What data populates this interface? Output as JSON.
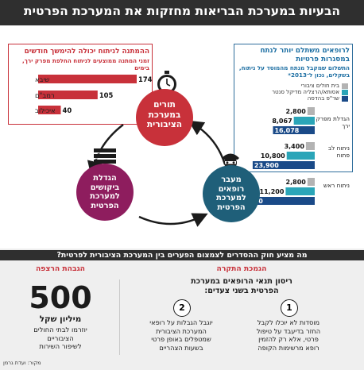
{
  "title": "הבעיות במערכת הבריאות מחזקות את המערכת הפרטית",
  "circles": {
    "public_queues": [
      "תורים",
      "במערכת",
      "הציבורית"
    ],
    "private_demand": [
      "הגדלת",
      "ביקושים",
      "למערכת",
      "הפרטית"
    ],
    "doctors_move": [
      "מעבר",
      "רופאים",
      "למערכת",
      "הפרטית"
    ]
  },
  "colors": {
    "red": "#c8313a",
    "purple": "#8e1d5e",
    "teal": "#1f5f79",
    "gray_bar": "#b3b3b3",
    "teal_bar": "#2aa5b8",
    "navy_bar": "#1a4a88"
  },
  "icons": [
    "stopwatch-icon",
    "documents-icon",
    "doctor-icon"
  ],
  "chart_data": [
    {
      "type": "bar",
      "title": "לרופאים משתלם יותר לנתח במסגרות פרטיות",
      "subtitle": "התשלום שמקבל מנתח מהמוסד על ניתוח, בשקלים, נכון ל־2013*",
      "categories": [
        "הגדלת מפרק ירך",
        "ניתוח לב פתוח",
        "ניתוח ראש"
      ],
      "series": [
        {
          "name": "בית חולים ציבורי",
          "values": [
            2800,
            3400,
            2800
          ]
        },
        {
          "name": "אסותא/הרצליה מדיקל סנטר",
          "values": [
            8067,
            10800,
            11200
          ]
        },
        {
          "name": "שר\"פ בהדסה",
          "values": [
            16078,
            23900,
            30000
          ]
        }
      ],
      "value_labels": [
        [
          "2,800",
          "8,067",
          "16,078"
        ],
        [
          "3,400",
          "10,800",
          "23,900"
        ],
        [
          "2,800",
          "11,200",
          "30,000"
        ]
      ],
      "legend": "top-right"
    },
    {
      "type": "bar",
      "title": "ההמתנה לניתוח יכולה להימשך חודשים",
      "subtitle": "זמני המתנה ממוצעים לניתוח החלפת מפרק ירך, בימים",
      "categories": [
        "שיבא",
        "רמב\"ם",
        "איכילוב"
      ],
      "values": [
        174,
        105,
        40
      ],
      "value_labels": [
        "174",
        "105",
        "40"
      ]
    }
  ],
  "bottom": {
    "question": "מה מציע חוק ההסדרים לצמצום הפערים בין המערכת הציבורית לפרטית?",
    "right_header": "הגמכת התקרה",
    "left_header": "הגבהת הרצפה",
    "right_intro": [
      "ריסון תנאי הרופאים במערכת",
      "הפרטית בשני צעדים:"
    ],
    "step1_num": "1",
    "step2_num": "2",
    "step1": [
      "מוסדות לא יוכלו לקבל",
      "החזר בדיעבד על טיפול",
      "פרטי, אלא רק להזמין",
      "רופא מרשימות הקופה"
    ],
    "step2": [
      "יוגבל הגבלות על רופאי",
      "המערכת הציבורית",
      "שמטפלים באופן פרטי",
      "בשעות הצהריים"
    ],
    "big_number": "500",
    "big_unit": "מיליון שקל",
    "left_text": [
      "יוזרמו לבתי החולים",
      "הציבוריים",
      "לשיפור השירות"
    ],
    "source": "מקור: ועדת גרמן"
  }
}
